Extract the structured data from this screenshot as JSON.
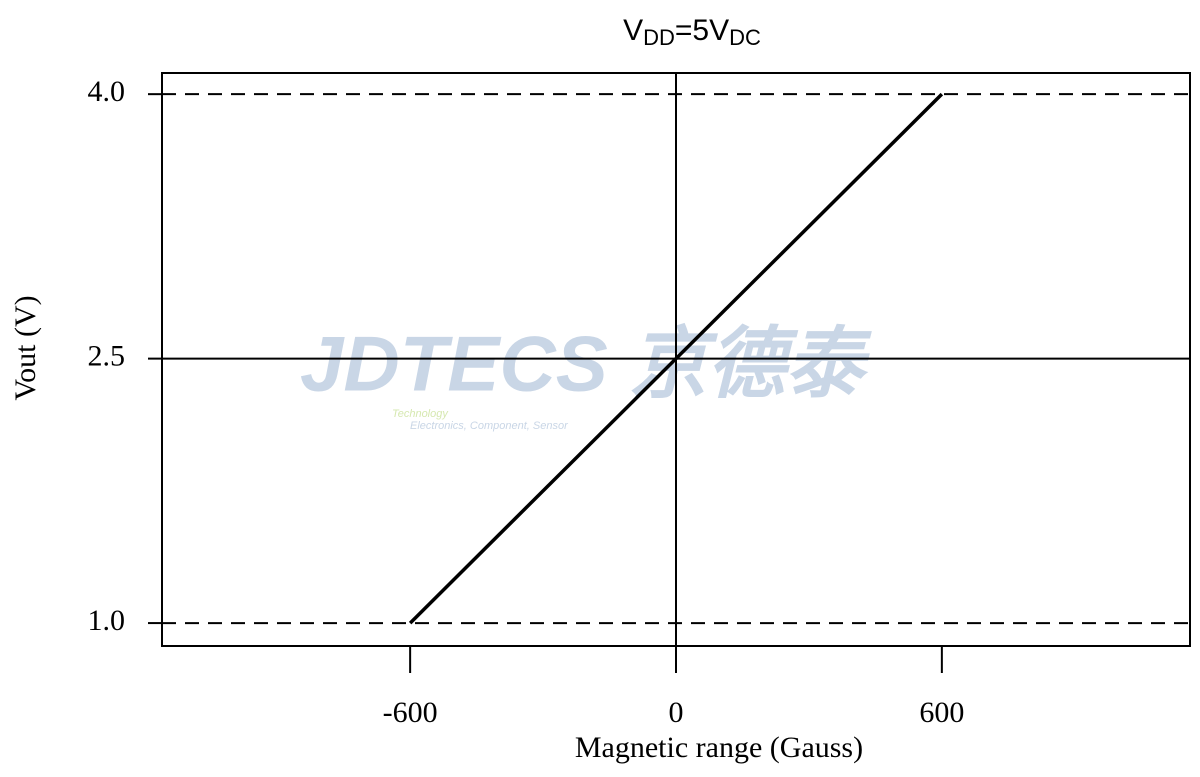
{
  "chart_data": {
    "type": "line",
    "title": [
      "V",
      "DD",
      "=5V",
      "DC"
    ],
    "xlabel": "Magnetic range (Gauss)",
    "ylabel": "Vout (V)",
    "x": [
      -600,
      600
    ],
    "series": [
      {
        "color": "#000000",
        "values": [
          1.0,
          4.0
        ]
      }
    ],
    "xlim": [
      -1160,
      1160
    ],
    "ylim": [
      0.87,
      4.12
    ],
    "xticks": [
      -600,
      0,
      600
    ],
    "yticks": [
      {
        "value": 1.0,
        "label": "1.0"
      },
      2.5,
      {
        "value": 4.0,
        "label": "4.0"
      }
    ],
    "watermark": [
      "JDTECS 京德泰",
      "Technology",
      "Electronics, Component, Sensor"
    ]
  }
}
